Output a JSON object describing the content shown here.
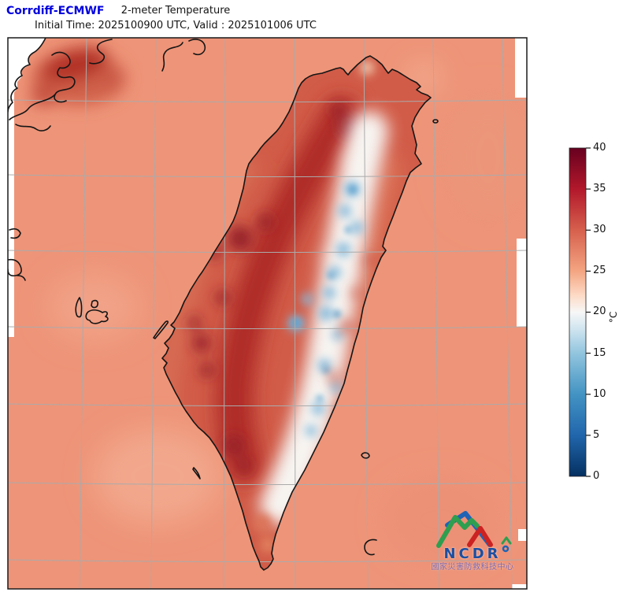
{
  "header": {
    "model": "Corrdiff-ECMWF",
    "title": "2-meter Temperature",
    "subtitle": "Initial Time: 2025100900 UTC, Valid : 2025101006 UTC"
  },
  "map": {
    "region": "Taiwan and surrounding seas",
    "field": "2-meter temperature shading with coastlines and lat-lon gridlines",
    "gridlines": true
  },
  "colorbar": {
    "unit": "°C",
    "min": 0,
    "max": 40,
    "ticks": [
      "40",
      "35",
      "30",
      "25",
      "20",
      "15",
      "10",
      "5",
      "0"
    ],
    "colormap": "RdBu_r",
    "stops": [
      {
        "t": 0,
        "c": "#053061"
      },
      {
        "t": 5,
        "c": "#2166ac"
      },
      {
        "t": 10,
        "c": "#4393c3"
      },
      {
        "t": 15,
        "c": "#92c5de"
      },
      {
        "t": 18,
        "c": "#d1e5f0"
      },
      {
        "t": 20,
        "c": "#f7f7f7"
      },
      {
        "t": 22,
        "c": "#fddbc7"
      },
      {
        "t": 25,
        "c": "#f4a582"
      },
      {
        "t": 30,
        "c": "#d6604d"
      },
      {
        "t": 35,
        "c": "#b2182b"
      },
      {
        "t": 40,
        "c": "#67001f"
      }
    ]
  },
  "logo": {
    "acronym": "NCDR",
    "org_name_zh": "國家災害防救科技中心"
  },
  "colors": {
    "ocean": "#ee9478",
    "land_warm_band": "#af2b28",
    "land_dark_spot": "#97202a",
    "ridge_cool_white": "#f7f4f1",
    "ridge_cool_blue": "#83b9dc",
    "deep_cool_blue": "#5ea2ce",
    "gridline": "#ababab",
    "coastline": "#151515",
    "title_accent": "#0000e0",
    "logo_green": "#2e9e4f",
    "logo_blue": "#1f63b5",
    "logo_red": "#cc2222"
  }
}
